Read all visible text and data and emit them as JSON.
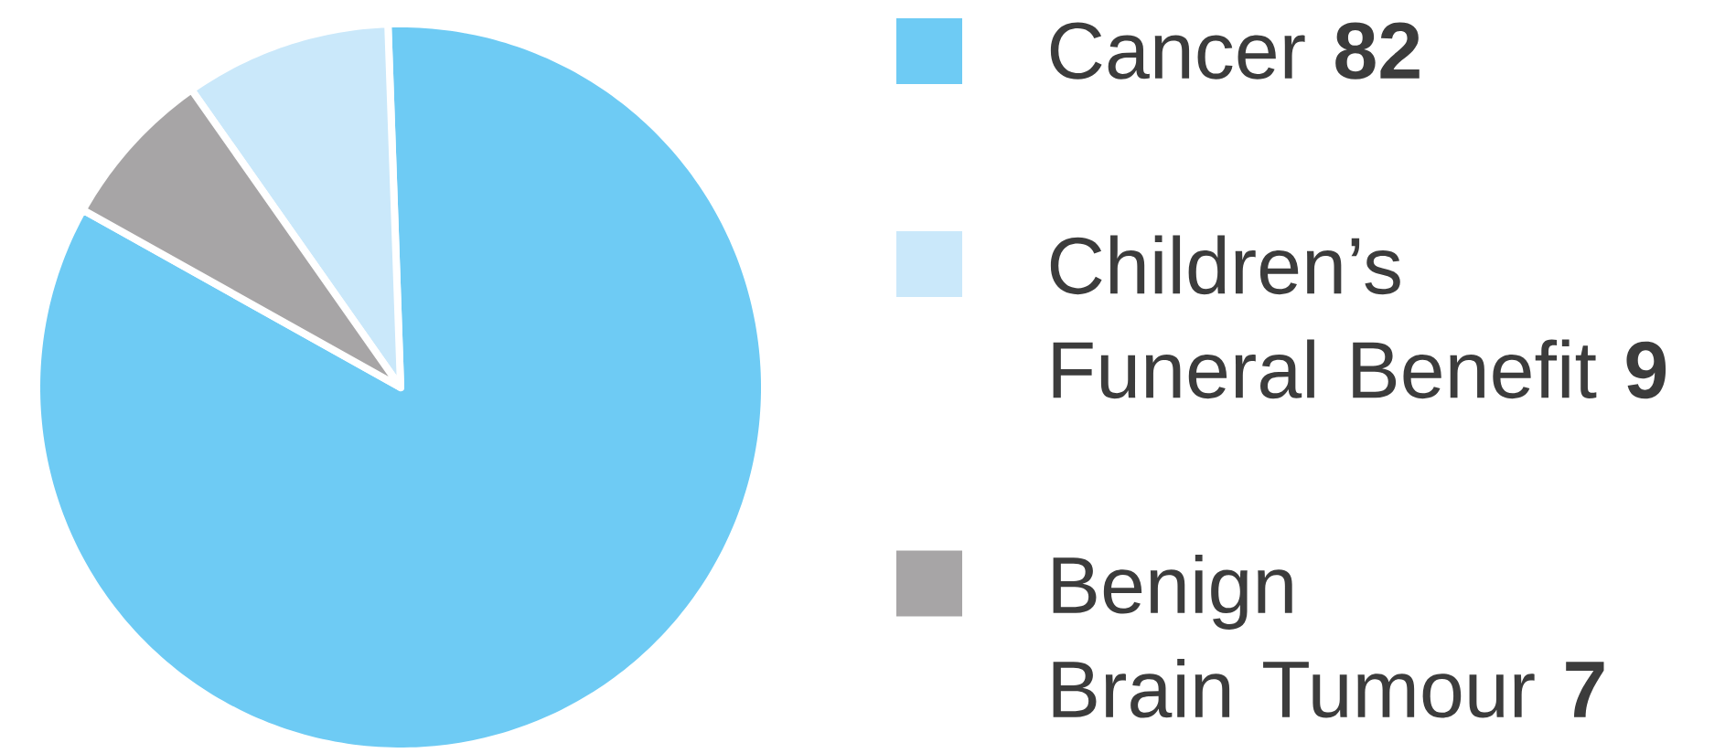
{
  "chart_data": {
    "type": "pie",
    "categories": [
      "Cancer",
      "Children’s Funeral Benefit",
      "Benign Brain Tumour"
    ],
    "values": [
      82,
      9,
      7
    ],
    "colors": [
      "#6ecbf4",
      "#cae8fa",
      "#a7a5a6"
    ],
    "legend": "right",
    "data_labels": true
  }
}
